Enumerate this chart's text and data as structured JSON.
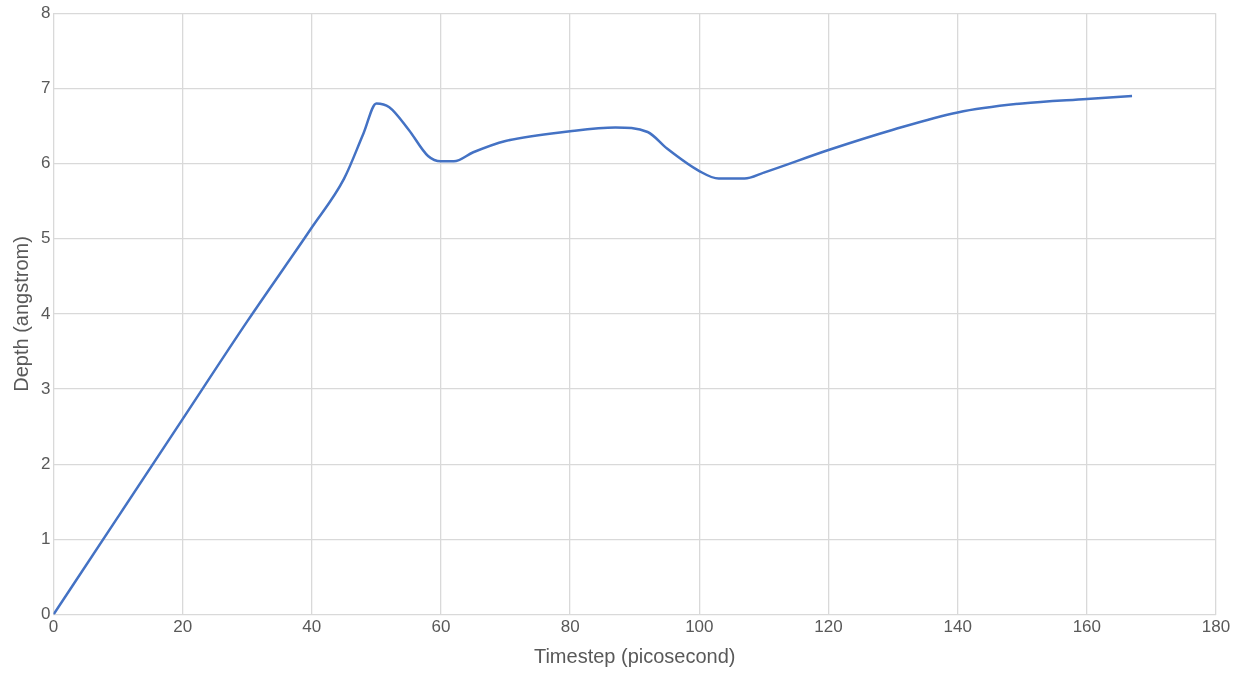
{
  "chart_data": {
    "type": "line",
    "xlabel": "Timestep (picosecond)",
    "ylabel": "Depth (angstrom)",
    "x": [
      0,
      10,
      20,
      30,
      40,
      45,
      48,
      50,
      52,
      55,
      58,
      60,
      62,
      65,
      70,
      80,
      87,
      92,
      95,
      100,
      103,
      107,
      110,
      120,
      130,
      140,
      150,
      160,
      167
    ],
    "series": [
      {
        "color": "#4472c4",
        "values": [
          0,
          1.3,
          2.6,
          3.9,
          5.15,
          5.8,
          6.4,
          6.8,
          6.75,
          6.45,
          6.1,
          6.03,
          6.03,
          6.15,
          6.3,
          6.43,
          6.48,
          6.42,
          6.2,
          5.9,
          5.8,
          5.8,
          5.88,
          6.18,
          6.45,
          6.68,
          6.8,
          6.86,
          6.9
        ]
      }
    ],
    "xlim": [
      0,
      180
    ],
    "xticks": [
      0,
      20,
      40,
      60,
      80,
      100,
      120,
      140,
      160,
      180
    ],
    "ylim": [
      0,
      8
    ],
    "yticks": [
      0,
      1,
      2,
      3,
      4,
      5,
      6,
      7,
      8
    ],
    "grid": true,
    "legend": false,
    "marker": "none",
    "line_style": "solid"
  }
}
